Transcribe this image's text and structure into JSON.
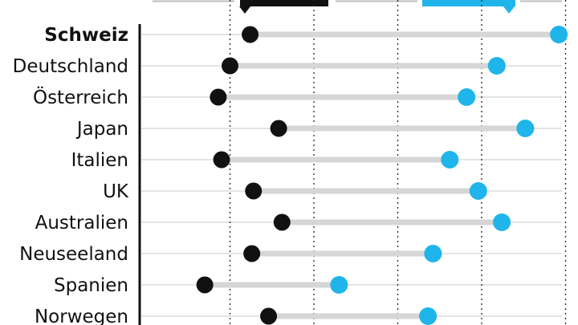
{
  "colors": {
    "start_dot": "#111111",
    "end_dot": "#1fb5ea",
    "connector": "#d6d6d6",
    "gridline": "#dcdcdc",
    "axis": "#111111"
  },
  "chart_data": {
    "type": "dumbbell",
    "highlighted_category": "Schweiz",
    "categories": [
      "Schweiz",
      "Deutschland",
      "Österreich",
      "Japan",
      "Italien",
      "UK",
      "Australien",
      "Neuseeland",
      "Spanien",
      "Norwegen"
    ],
    "series": [
      {
        "values": [
          6.2,
          5.0,
          4.3,
          7.9,
          4.5,
          6.4,
          8.1,
          6.3,
          3.5,
          7.3
        ]
      },
      {
        "values": [
          24.6,
          20.9,
          19.1,
          22.6,
          18.1,
          19.8,
          21.2,
          17.1,
          11.5,
          16.8
        ]
      }
    ],
    "xlim": [
      0,
      30
    ],
    "vertical_reference_lines": [
      5,
      10,
      15,
      20,
      25
    ],
    "legend_markers": [
      {
        "color": "#111111"
      },
      {
        "color": "#1fb5ea"
      }
    ]
  }
}
